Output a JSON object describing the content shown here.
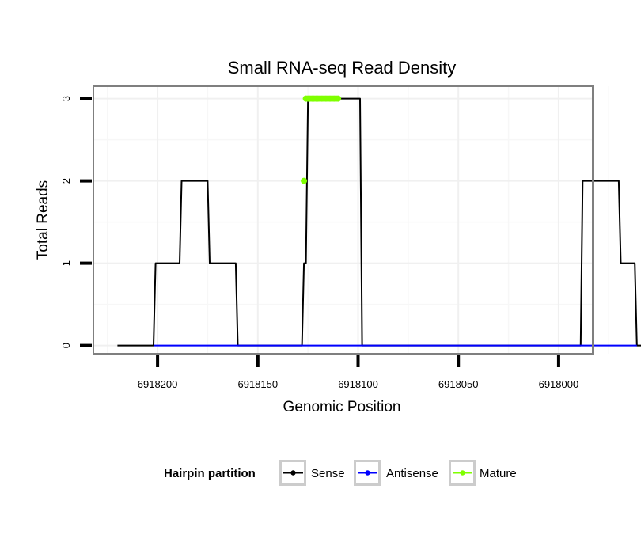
{
  "chart_data": {
    "type": "line",
    "title": "Small RNA-seq Read Density",
    "xlabel": "Genomic Position",
    "ylabel": "Total Reads",
    "x_reversed": true,
    "xlim": [
      6918232,
      6917983
    ],
    "ylim": [
      -0.1,
      3.15
    ],
    "x_ticks": [
      6918200,
      6918150,
      6918100,
      6918050,
      6918000
    ],
    "x_tick_labels": [
      "6918200",
      "6918150",
      "6918100",
      "6918050",
      "6918000"
    ],
    "y_ticks": [
      0,
      1,
      2,
      3
    ],
    "y_tick_labels": [
      "0",
      "1",
      "2",
      "3"
    ],
    "grid": true,
    "legend": {
      "title": "Hairpin partition",
      "placement": "bottom",
      "entries": [
        "Sense",
        "Antisense",
        "Mature"
      ]
    },
    "series": [
      {
        "name": "Sense",
        "color": "#000000",
        "x": [
          6918220,
          6918202,
          6918201,
          6918189,
          6918188,
          6918175,
          6918174,
          6918161,
          6918160,
          6918128,
          6918127,
          6918126,
          6918125,
          6918110,
          6918109,
          6918108,
          6918107,
          6918101,
          6918100,
          6918099,
          6918098,
          6917990,
          6917989,
          6917988,
          6917987,
          6917970,
          6917969,
          6917962,
          6917961,
          6917955
        ],
        "y": [
          0,
          0,
          1,
          1,
          2,
          2,
          1,
          1,
          0,
          0,
          1,
          1,
          3,
          3,
          3,
          3,
          3,
          3,
          3,
          3,
          0,
          0,
          0,
          2,
          2,
          2,
          1,
          1,
          0,
          0
        ]
      },
      {
        "name": "Antisense",
        "color": "#0000ff",
        "x": [
          6918202,
          6918160,
          6918128,
          6918098,
          6917987,
          6917961
        ],
        "y": [
          0,
          0,
          0,
          0,
          0,
          0
        ]
      },
      {
        "name": "Mature",
        "color": "#7fff00",
        "x": [
          6918127,
          6918126,
          6918125,
          6918124,
          6918123,
          6918122,
          6918121,
          6918120,
          6918119,
          6918118,
          6918117,
          6918116,
          6918115,
          6918114,
          6918113,
          6918112,
          6918111,
          6918110
        ],
        "y": [
          2,
          3,
          3,
          3,
          3,
          3,
          3,
          3,
          3,
          3,
          3,
          3,
          3,
          3,
          3,
          3,
          3,
          3
        ]
      }
    ]
  }
}
